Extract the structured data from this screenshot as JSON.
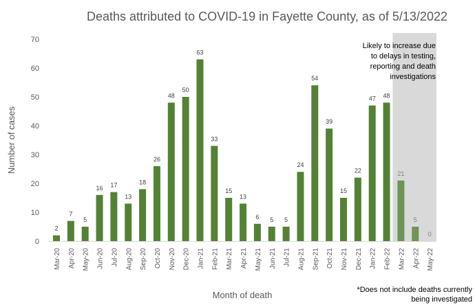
{
  "chart_data": {
    "type": "bar",
    "title": "Deaths attributed to COVID-19 in Fayette County, as of 5/13/2022",
    "xlabel": "Month of death",
    "ylabel": "Number of cases",
    "ylim": [
      0,
      70
    ],
    "yticks": [
      0,
      10,
      20,
      30,
      40,
      50,
      60,
      70
    ],
    "grid": false,
    "categories": [
      "Mar-20",
      "Apr-20",
      "May-20",
      "Jun-20",
      "Jul-20",
      "Aug-20",
      "Sep-20",
      "Oct-20",
      "Nov-20",
      "Dec-20",
      "Jan-21",
      "Feb-21",
      "Mar-21",
      "Apr-21",
      "May-21",
      "Jun-21",
      "Jul-21",
      "Aug-21",
      "Sep-21",
      "Oct-21",
      "Nov-21",
      "Dec-21",
      "Jan-22",
      "Feb-22",
      "Mar-22",
      "Apr-22",
      "May-22"
    ],
    "values": [
      2,
      7,
      5,
      16,
      17,
      13,
      18,
      26,
      48,
      50,
      63,
      33,
      15,
      13,
      6,
      5,
      5,
      24,
      54,
      39,
      15,
      22,
      47,
      48,
      21,
      5,
      0
    ],
    "shaded_categories": [
      "Mar-22",
      "Apr-22",
      "May-22"
    ],
    "shaded_annotation": [
      "Likely to increase due",
      "to delays in testing,",
      "reporting and death",
      "investigations"
    ],
    "footnote": [
      "*Does not include deaths currently",
      "being investigated"
    ],
    "colors": {
      "bar": "#548235",
      "shaded": "#d9d9d9",
      "text": "#595959"
    }
  }
}
